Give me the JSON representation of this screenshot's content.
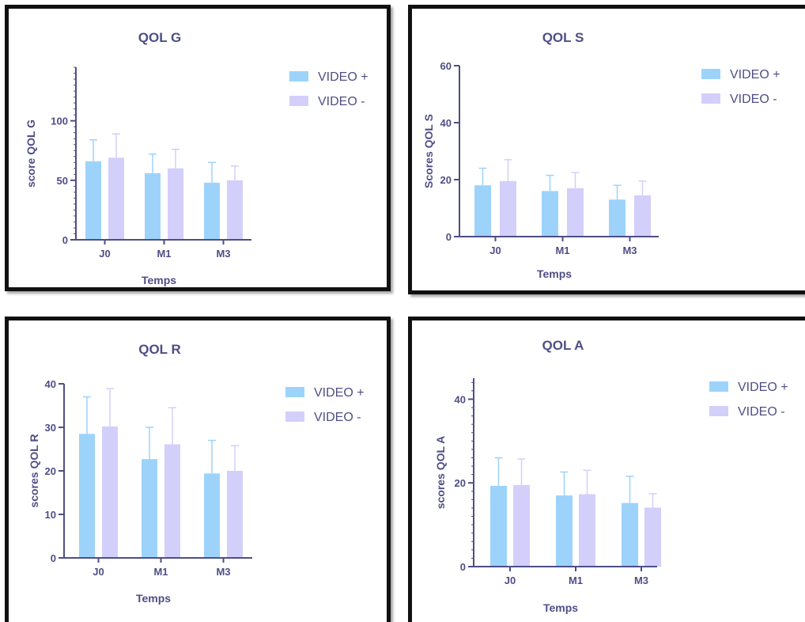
{
  "colors": {
    "video_plus": "#9dd3fb",
    "video_minus": "#d3cffb",
    "axis": "#4e4e86",
    "text": "#4e4e86"
  },
  "chart_data": [
    {
      "type": "bar",
      "title": "QOL G",
      "xlabel": "Temps",
      "ylabel": "score QOL G",
      "categories": [
        "J0",
        "M1",
        "M3"
      ],
      "ylim": [
        0,
        145
      ],
      "yticks": [
        0,
        50,
        100
      ],
      "minor_ticks": true,
      "series": [
        {
          "name": "VIDEO +",
          "values": [
            66,
            56,
            48
          ],
          "errors": [
            18,
            16,
            17
          ]
        },
        {
          "name": "VIDEO -",
          "values": [
            69,
            60,
            50
          ],
          "errors": [
            20,
            16,
            12
          ]
        }
      ]
    },
    {
      "type": "bar",
      "title": "QOL S",
      "xlabel": "Temps",
      "ylabel": "Scores QOL S",
      "categories": [
        "J0",
        "M1",
        "M3"
      ],
      "ylim": [
        0,
        60
      ],
      "yticks": [
        0,
        20,
        40,
        60
      ],
      "minor_ticks": false,
      "series": [
        {
          "name": "VIDEO +",
          "values": [
            18,
            16,
            13
          ],
          "errors": [
            6,
            5.5,
            5
          ]
        },
        {
          "name": "VIDEO -",
          "values": [
            19.5,
            17,
            14.5
          ],
          "errors": [
            7.5,
            5.5,
            5
          ]
        }
      ]
    },
    {
      "type": "bar",
      "title": "QOL R",
      "xlabel": "Temps",
      "ylabel": "scores QOL R",
      "categories": [
        "J0",
        "M1",
        "M3"
      ],
      "ylim": [
        0,
        40
      ],
      "yticks": [
        0,
        10,
        20,
        30,
        40
      ],
      "minor_ticks": false,
      "series": [
        {
          "name": "VIDEO +",
          "values": [
            28.5,
            22.7,
            19.4
          ],
          "errors": [
            8.5,
            7.3,
            7.6
          ]
        },
        {
          "name": "VIDEO -",
          "values": [
            30.2,
            26.1,
            20
          ],
          "errors": [
            8.7,
            8.4,
            5.8
          ]
        }
      ]
    },
    {
      "type": "bar",
      "title": "QOL A",
      "xlabel": "Temps",
      "ylabel": "scores QOL A",
      "categories": [
        "J0",
        "M1",
        "M3"
      ],
      "ylim": [
        0,
        45
      ],
      "yticks": [
        0,
        20,
        40
      ],
      "minor_ticks": true,
      "series": [
        {
          "name": "VIDEO +",
          "values": [
            19.3,
            17,
            15.2
          ],
          "errors": [
            6.7,
            5.6,
            6.4
          ]
        },
        {
          "name": "VIDEO -",
          "values": [
            19.5,
            17.3,
            14.1
          ],
          "errors": [
            6.2,
            5.7,
            3.3
          ]
        }
      ]
    }
  ]
}
